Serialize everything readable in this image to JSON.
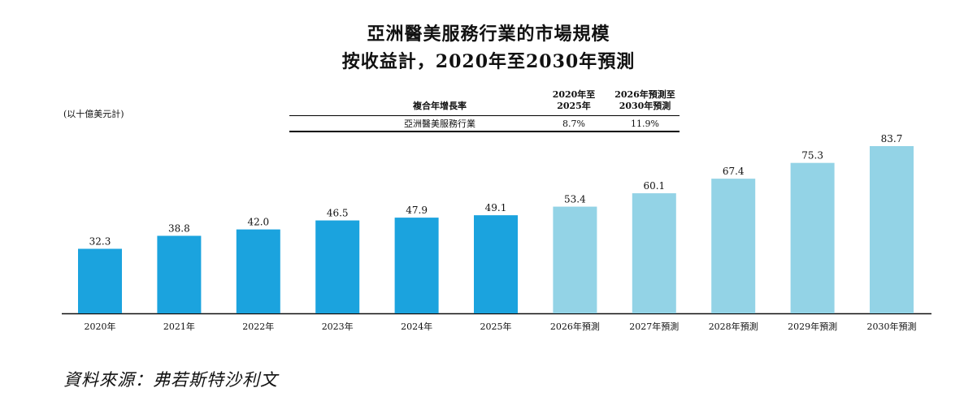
{
  "title_line1": "亞洲醫美服務行業的市場規模",
  "title_line2": "按收益計，2020年至2030年預測",
  "unit_label": "(以十億美元計)",
  "cagr_table": {
    "header_label": "複合年增長率",
    "col1_header": [
      "2020年至",
      "2025年"
    ],
    "col2_header": [
      "2026年預測至",
      "2030年預測"
    ],
    "row_label": "亞洲醫美服務行業",
    "row_col1": "8.7%",
    "row_col2": "11.9%"
  },
  "source": "資料來源：弗若斯特沙利文",
  "chart_data": {
    "type": "bar",
    "categories": [
      "2020年",
      "2021年",
      "2022年",
      "2023年",
      "2024年",
      "2025年",
      "2026年預測",
      "2027年預測",
      "2028年預測",
      "2029年預測",
      "2030年預測"
    ],
    "values": [
      32.3,
      38.8,
      42.0,
      46.5,
      47.9,
      49.1,
      53.4,
      60.1,
      67.4,
      75.3,
      83.7
    ],
    "value_labels": [
      "32.3",
      "38.8",
      "42.0",
      "46.5",
      "47.9",
      "49.1",
      "53.4",
      "60.1",
      "67.4",
      "75.3",
      "83.7"
    ],
    "bar_colors": [
      "#1ba3de",
      "#1ba3de",
      "#1ba3de",
      "#1ba3de",
      "#1ba3de",
      "#1ba3de",
      "#93d3e6",
      "#93d3e6",
      "#93d3e6",
      "#93d3e6",
      "#93d3e6"
    ],
    "ylim": [
      0,
      83.7
    ],
    "grid": false,
    "legend": "none"
  }
}
